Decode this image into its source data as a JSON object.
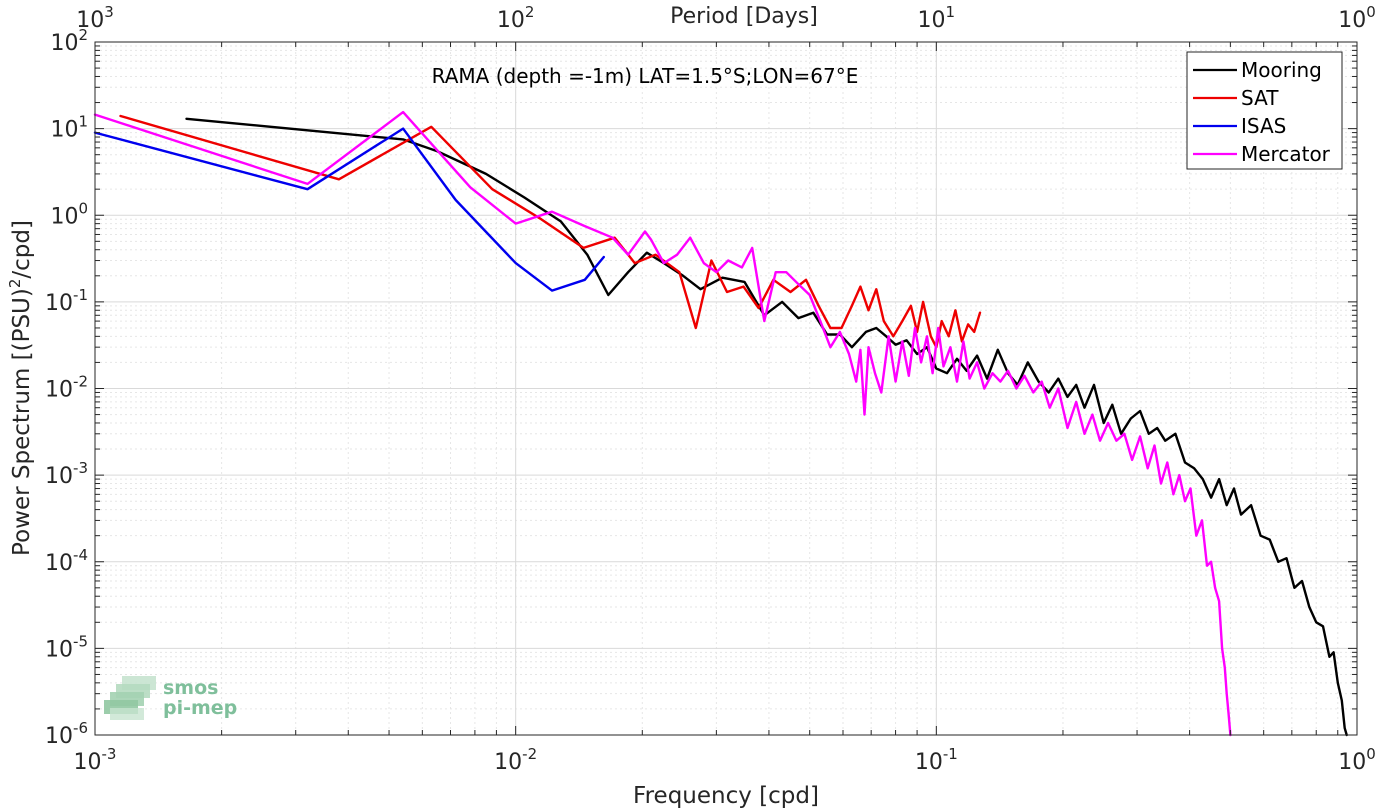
{
  "chart_data": {
    "type": "line",
    "title": "RAMA (depth =-1m) LAT=1.5°S;LON=67°E",
    "xlabel": "Frequency [cpd]",
    "ylabel": "Power Spectrum [(PSU)",
    "ylabel_sup": "2",
    "ylabel_tail": "/cpd]",
    "top_xlabel": "Period [Days]",
    "x_scale": "log",
    "y_scale": "log",
    "xlim": [
      0.001,
      1
    ],
    "ylim": [
      1e-06,
      100
    ],
    "grid": true,
    "legend_position": "top-right",
    "x_ticks": [
      {
        "value": 0.001,
        "base": "10",
        "exp": "-3"
      },
      {
        "value": 0.01,
        "base": "10",
        "exp": "-2"
      },
      {
        "value": 0.1,
        "base": "10",
        "exp": "-1"
      },
      {
        "value": 1,
        "base": "10",
        "exp": "0"
      }
    ],
    "top_ticks": [
      {
        "value": 0.001,
        "base": "10",
        "exp": "3"
      },
      {
        "value": 0.01,
        "base": "10",
        "exp": "2"
      },
      {
        "value": 0.1,
        "base": "10",
        "exp": "1"
      },
      {
        "value": 1,
        "base": "10",
        "exp": "0"
      }
    ],
    "y_ticks": [
      {
        "value": 100,
        "base": "10",
        "exp": "2"
      },
      {
        "value": 10,
        "base": "10",
        "exp": "1"
      },
      {
        "value": 1,
        "base": "10",
        "exp": "0"
      },
      {
        "value": 0.1,
        "base": "10",
        "exp": "-1"
      },
      {
        "value": 0.01,
        "base": "10",
        "exp": "-2"
      },
      {
        "value": 0.001,
        "base": "10",
        "exp": "-3"
      },
      {
        "value": 0.0001,
        "base": "10",
        "exp": "-4"
      },
      {
        "value": 1e-05,
        "base": "10",
        "exp": "-5"
      },
      {
        "value": 1e-06,
        "base": "10",
        "exp": "-6"
      }
    ],
    "series": [
      {
        "name": "Mooring",
        "color": "#000000",
        "points": [
          [
            0.00165,
            13
          ],
          [
            0.0054,
            7.5
          ],
          [
            0.0065,
            5.5
          ],
          [
            0.0085,
            3.0
          ],
          [
            0.0105,
            1.6
          ],
          [
            0.0128,
            0.85
          ],
          [
            0.0148,
            0.35
          ],
          [
            0.0166,
            0.12
          ],
          [
            0.0185,
            0.22
          ],
          [
            0.0205,
            0.37
          ],
          [
            0.0225,
            0.28
          ],
          [
            0.025,
            0.2
          ],
          [
            0.0275,
            0.14
          ],
          [
            0.031,
            0.19
          ],
          [
            0.035,
            0.17
          ],
          [
            0.039,
            0.07
          ],
          [
            0.043,
            0.1
          ],
          [
            0.047,
            0.065
          ],
          [
            0.051,
            0.075
          ],
          [
            0.055,
            0.042
          ],
          [
            0.059,
            0.042
          ],
          [
            0.063,
            0.03
          ],
          [
            0.068,
            0.045
          ],
          [
            0.072,
            0.05
          ],
          [
            0.076,
            0.04
          ],
          [
            0.08,
            0.032
          ],
          [
            0.085,
            0.036
          ],
          [
            0.09,
            0.025
          ],
          [
            0.095,
            0.03
          ],
          [
            0.1,
            0.017
          ],
          [
            0.106,
            0.015
          ],
          [
            0.112,
            0.022
          ],
          [
            0.118,
            0.016
          ],
          [
            0.125,
            0.024
          ],
          [
            0.132,
            0.013
          ],
          [
            0.14,
            0.028
          ],
          [
            0.148,
            0.015
          ],
          [
            0.156,
            0.011
          ],
          [
            0.165,
            0.02
          ],
          [
            0.175,
            0.012
          ],
          [
            0.185,
            0.009
          ],
          [
            0.195,
            0.013
          ],
          [
            0.205,
            0.008
          ],
          [
            0.215,
            0.011
          ],
          [
            0.225,
            0.006
          ],
          [
            0.237,
            0.011
          ],
          [
            0.25,
            0.004
          ],
          [
            0.262,
            0.0065
          ],
          [
            0.275,
            0.003
          ],
          [
            0.29,
            0.0045
          ],
          [
            0.305,
            0.0055
          ],
          [
            0.32,
            0.003
          ],
          [
            0.335,
            0.0035
          ],
          [
            0.35,
            0.0025
          ],
          [
            0.37,
            0.003
          ],
          [
            0.39,
            0.0014
          ],
          [
            0.41,
            0.0012
          ],
          [
            0.43,
            0.0009
          ],
          [
            0.45,
            0.00055
          ],
          [
            0.47,
            0.0009
          ],
          [
            0.49,
            0.00045
          ],
          [
            0.51,
            0.0007
          ],
          [
            0.53,
            0.00035
          ],
          [
            0.56,
            0.00045
          ],
          [
            0.59,
            0.0002
          ],
          [
            0.62,
            0.00018
          ],
          [
            0.65,
            0.0001
          ],
          [
            0.68,
            0.00011
          ],
          [
            0.71,
            5e-05
          ],
          [
            0.74,
            6e-05
          ],
          [
            0.77,
            3e-05
          ],
          [
            0.8,
            2e-05
          ],
          [
            0.83,
            1.8e-05
          ],
          [
            0.86,
            8e-06
          ],
          [
            0.88,
            9e-06
          ],
          [
            0.9,
            4e-06
          ],
          [
            0.92,
            2.5e-06
          ],
          [
            0.935,
            1.2e-06
          ],
          [
            0.945,
            1e-06
          ]
        ]
      },
      {
        "name": "SAT",
        "color": "#ee0000",
        "points": [
          [
            0.00115,
            14
          ],
          [
            0.0038,
            2.6
          ],
          [
            0.0063,
            10.5
          ],
          [
            0.0088,
            2.0
          ],
          [
            0.0115,
            0.9
          ],
          [
            0.0145,
            0.42
          ],
          [
            0.0172,
            0.55
          ],
          [
            0.0192,
            0.28
          ],
          [
            0.0215,
            0.35
          ],
          [
            0.0245,
            0.22
          ],
          [
            0.0268,
            0.05
          ],
          [
            0.0292,
            0.3
          ],
          [
            0.0318,
            0.13
          ],
          [
            0.0348,
            0.15
          ],
          [
            0.0378,
            0.085
          ],
          [
            0.041,
            0.18
          ],
          [
            0.045,
            0.13
          ],
          [
            0.049,
            0.18
          ],
          [
            0.0525,
            0.09
          ],
          [
            0.056,
            0.05
          ],
          [
            0.0595,
            0.05
          ],
          [
            0.063,
            0.09
          ],
          [
            0.066,
            0.15
          ],
          [
            0.069,
            0.08
          ],
          [
            0.072,
            0.14
          ],
          [
            0.075,
            0.06
          ],
          [
            0.079,
            0.04
          ],
          [
            0.083,
            0.06
          ],
          [
            0.087,
            0.09
          ],
          [
            0.09,
            0.045
          ],
          [
            0.093,
            0.1
          ],
          [
            0.097,
            0.04
          ],
          [
            0.1,
            0.03
          ],
          [
            0.103,
            0.06
          ],
          [
            0.107,
            0.04
          ],
          [
            0.111,
            0.08
          ],
          [
            0.115,
            0.035
          ],
          [
            0.119,
            0.055
          ],
          [
            0.123,
            0.045
          ],
          [
            0.127,
            0.075
          ]
        ]
      },
      {
        "name": "ISAS",
        "color": "#0000ee",
        "points": [
          [
            0.001,
            9
          ],
          [
            0.0032,
            2.0
          ],
          [
            0.0054,
            10.0
          ],
          [
            0.0072,
            1.5
          ],
          [
            0.01,
            0.28
          ],
          [
            0.0122,
            0.135
          ],
          [
            0.0146,
            0.18
          ],
          [
            0.0162,
            0.33
          ]
        ]
      },
      {
        "name": "Mercator",
        "color": "#ff00ff",
        "points": [
          [
            0.001,
            14.5
          ],
          [
            0.0032,
            2.3
          ],
          [
            0.0054,
            15.5
          ],
          [
            0.0078,
            2.1
          ],
          [
            0.01,
            0.8
          ],
          [
            0.0122,
            1.1
          ],
          [
            0.0146,
            0.75
          ],
          [
            0.017,
            0.55
          ],
          [
            0.0185,
            0.35
          ],
          [
            0.0203,
            0.65
          ],
          [
            0.021,
            0.52
          ],
          [
            0.0225,
            0.28
          ],
          [
            0.0242,
            0.35
          ],
          [
            0.026,
            0.55
          ],
          [
            0.028,
            0.28
          ],
          [
            0.03,
            0.22
          ],
          [
            0.032,
            0.3
          ],
          [
            0.0345,
            0.25
          ],
          [
            0.0365,
            0.42
          ],
          [
            0.039,
            0.06
          ],
          [
            0.0415,
            0.22
          ],
          [
            0.044,
            0.22
          ],
          [
            0.047,
            0.16
          ],
          [
            0.05,
            0.12
          ],
          [
            0.053,
            0.06
          ],
          [
            0.056,
            0.03
          ],
          [
            0.059,
            0.045
          ],
          [
            0.062,
            0.025
          ],
          [
            0.0645,
            0.012
          ],
          [
            0.066,
            0.028
          ],
          [
            0.0675,
            0.005
          ],
          [
            0.069,
            0.03
          ],
          [
            0.0715,
            0.015
          ],
          [
            0.074,
            0.009
          ],
          [
            0.077,
            0.04
          ],
          [
            0.08,
            0.012
          ],
          [
            0.083,
            0.035
          ],
          [
            0.086,
            0.014
          ],
          [
            0.089,
            0.05
          ],
          [
            0.092,
            0.02
          ],
          [
            0.095,
            0.04
          ],
          [
            0.098,
            0.015
          ],
          [
            0.101,
            0.05
          ],
          [
            0.104,
            0.018
          ],
          [
            0.108,
            0.03
          ],
          [
            0.112,
            0.012
          ],
          [
            0.116,
            0.035
          ],
          [
            0.12,
            0.013
          ],
          [
            0.125,
            0.02
          ],
          [
            0.13,
            0.01
          ],
          [
            0.136,
            0.015
          ],
          [
            0.142,
            0.012
          ],
          [
            0.148,
            0.016
          ],
          [
            0.155,
            0.01
          ],
          [
            0.162,
            0.014
          ],
          [
            0.17,
            0.009
          ],
          [
            0.178,
            0.012
          ],
          [
            0.186,
            0.006
          ],
          [
            0.195,
            0.01
          ],
          [
            0.205,
            0.0035
          ],
          [
            0.215,
            0.007
          ],
          [
            0.225,
            0.003
          ],
          [
            0.235,
            0.005
          ],
          [
            0.245,
            0.0025
          ],
          [
            0.256,
            0.004
          ],
          [
            0.268,
            0.0025
          ],
          [
            0.28,
            0.003
          ],
          [
            0.292,
            0.0015
          ],
          [
            0.305,
            0.0028
          ],
          [
            0.318,
            0.0012
          ],
          [
            0.33,
            0.0022
          ],
          [
            0.342,
            0.0008
          ],
          [
            0.354,
            0.0014
          ],
          [
            0.366,
            0.0006
          ],
          [
            0.378,
            0.001
          ],
          [
            0.39,
            0.0005
          ],
          [
            0.402,
            0.0007
          ],
          [
            0.415,
            0.0002
          ],
          [
            0.428,
            0.0003
          ],
          [
            0.44,
            9e-05
          ],
          [
            0.45,
            0.0001
          ],
          [
            0.46,
            5e-05
          ],
          [
            0.47,
            3.5e-05
          ],
          [
            0.478,
            1e-05
          ],
          [
            0.485,
            6e-06
          ],
          [
            0.49,
            3e-06
          ],
          [
            0.495,
            1.8e-06
          ],
          [
            0.5,
            1e-06
          ]
        ]
      }
    ]
  },
  "logo": {
    "line1": "smos",
    "line2": "pi-mep"
  }
}
